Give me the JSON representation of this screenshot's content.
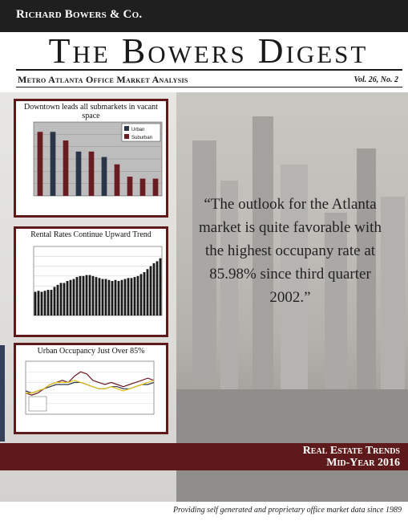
{
  "header": {
    "publisher": "Richard Bowers & Co.",
    "title": "The Bowers Digest",
    "subtitle": "Metro Atlanta Office Market Analysis",
    "volume": "Vol. 26, No. 2"
  },
  "quote": "“The outlook for the Atlanta market is quite favorable with the highest occupany rate at 85.98% since third quarter 2002.”",
  "banner": {
    "line1": "Real Estate Trends",
    "line2": "Mid-Year 2016"
  },
  "tagline": "Providing self generated and proprietary office market data since 1989",
  "chart_data": [
    {
      "type": "bar",
      "title": "Downtown leads all submarkets in vacant space",
      "legend": [
        "Urban",
        "Suburban"
      ],
      "colors": {
        "Urban": "#2b3548",
        "Suburban": "#6b1c22"
      },
      "ylim": [
        0,
        3000
      ],
      "values": [
        2600,
        2600,
        2250,
        1800,
        1800,
        1580,
        1280,
        780,
        700,
        700
      ],
      "series_of_bar": [
        "Suburban",
        "Urban",
        "Suburban",
        "Urban",
        "Suburban",
        "Urban",
        "Suburban",
        "Suburban",
        "Suburban",
        "Suburban"
      ]
    },
    {
      "type": "bar",
      "title": "Rental Rates Continue Upward Trend",
      "color": "#1a1a1a",
      "ylim": [
        18,
        25
      ],
      "values": [
        20.4,
        20.5,
        20.4,
        20.5,
        20.6,
        20.6,
        20.9,
        21.1,
        21.3,
        21.3,
        21.5,
        21.6,
        21.7,
        21.9,
        22.0,
        22.0,
        22.1,
        22.1,
        22.0,
        21.9,
        21.8,
        21.7,
        21.7,
        21.6,
        21.5,
        21.6,
        21.5,
        21.6,
        21.7,
        21.8,
        21.8,
        21.9,
        22.0,
        22.2,
        22.4,
        22.7,
        23.0,
        23.3,
        23.5,
        23.8
      ]
    },
    {
      "type": "line",
      "title": "Urban Occupancy Just Over 85%",
      "series": [
        {
          "color": "#6b1c22",
          "values": [
            80,
            79,
            80,
            82,
            84,
            85,
            86,
            85,
            88,
            90,
            89,
            86,
            85,
            84,
            85,
            84,
            83,
            84,
            85,
            86,
            87,
            86
          ]
        },
        {
          "color": "#2b3548",
          "values": [
            81,
            80,
            81,
            82,
            83,
            84,
            84,
            84,
            85,
            85,
            84,
            83,
            82,
            82,
            83,
            83,
            82,
            82,
            83,
            84,
            84,
            85
          ]
        },
        {
          "color": "#e0c21a",
          "values": [
            80,
            80,
            81,
            82,
            84,
            85,
            85,
            85,
            86,
            85,
            84,
            83,
            82,
            82,
            83,
            82,
            81,
            82,
            83,
            84,
            85,
            86
          ]
        }
      ]
    }
  ]
}
